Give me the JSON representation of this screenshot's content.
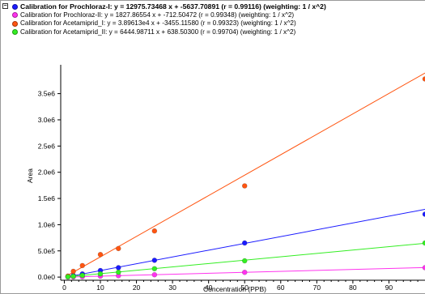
{
  "legend": {
    "collapse_symbol": "−",
    "entries": [
      {
        "text": "Calibration for Prochloraz-I: y = 12975.73468 x + -5637.70891 (r = 0.99116)  (weighting: 1 / x^2)",
        "color": "#1a1aff",
        "bold": true
      },
      {
        "text": "Calibration for Prochloraz-II: y = 1827.86554 x + -712.50472 (r = 0.99348)  (weighting: 1 / x^2)",
        "color": "#ff33ee",
        "bold": false
      },
      {
        "text": "Calibration for Acetamiprid_I: y = 3.89613e4 x + -3455.11580 (r = 0.99323)  (weighting: 1 / x^2)",
        "color": "#ff5511",
        "bold": false
      },
      {
        "text": "Calibration for Acetamiprid_II: y = 6444.98711 x + 638.50300 (r = 0.99704)  (weighting: 1 / x^2)",
        "color": "#33ee22",
        "bold": false
      }
    ]
  },
  "chart_data": {
    "type": "scatter",
    "title": "",
    "xlabel": "Concentration (PPB)",
    "ylabel": "Area",
    "xlim": [
      -1,
      100
    ],
    "ylim": [
      -60000,
      4050000
    ],
    "x_ticks": [
      0,
      10,
      20,
      30,
      40,
      50,
      60,
      70,
      80,
      90
    ],
    "y_ticks": [
      0,
      500000,
      1000000,
      1500000,
      2000000,
      2500000,
      3000000,
      3500000
    ],
    "y_tick_labels": [
      "0.0e0",
      "5.0e5",
      "1.0e6",
      "1.5e6",
      "2.0e6",
      "2.5e6",
      "3.0e6",
      "3.5e6"
    ],
    "series": [
      {
        "name": "Calibration for Prochloraz-I",
        "color": "#1a1aff",
        "fit": {
          "slope": 12975.73468,
          "intercept": -5637.70891
        },
        "points": [
          [
            1,
            7000
          ],
          [
            2.5,
            28000
          ],
          [
            5,
            60000
          ],
          [
            10,
            125000
          ],
          [
            15,
            180000
          ],
          [
            25,
            320000
          ],
          [
            50,
            650000
          ],
          [
            100,
            1200000
          ]
        ]
      },
      {
        "name": "Calibration for Prochloraz-II",
        "color": "#ff33ee",
        "fit": {
          "slope": 1827.86554,
          "intercept": -712.50472
        },
        "points": [
          [
            1,
            1000
          ],
          [
            2.5,
            4000
          ],
          [
            5,
            8000
          ],
          [
            10,
            18000
          ],
          [
            15,
            26000
          ],
          [
            25,
            45000
          ],
          [
            50,
            90000
          ],
          [
            100,
            180000
          ]
        ]
      },
      {
        "name": "Calibration for Acetamiprid_I",
        "color": "#ff5511",
        "fit": {
          "slope": 38961.3,
          "intercept": -3455.1158
        },
        "points": [
          [
            1,
            20000
          ],
          [
            2.5,
            110000
          ],
          [
            5,
            220000
          ],
          [
            10,
            430000
          ],
          [
            15,
            545000
          ],
          [
            25,
            880000
          ],
          [
            50,
            1740000
          ],
          [
            100,
            3780000
          ]
        ]
      },
      {
        "name": "Calibration for Acetamiprid_II",
        "color": "#33ee22",
        "fit": {
          "slope": 6444.98711,
          "intercept": 638.503
        },
        "points": [
          [
            1,
            5000
          ],
          [
            2.5,
            15000
          ],
          [
            5,
            32000
          ],
          [
            10,
            62000
          ],
          [
            15,
            92000
          ],
          [
            25,
            160000
          ],
          [
            50,
            310000
          ],
          [
            100,
            650000
          ]
        ]
      }
    ]
  }
}
